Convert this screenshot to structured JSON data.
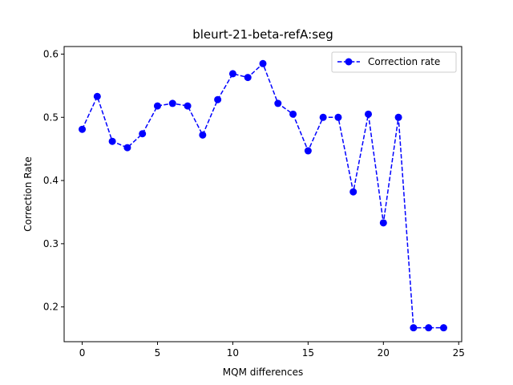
{
  "chart_data": {
    "type": "line",
    "title": "bleurt-21-beta-refA:seg",
    "xlabel": "MQM differences",
    "ylabel": "Correction Rate",
    "xlim": [
      -1.2,
      25.2
    ],
    "ylim": [
      0.145,
      0.612
    ],
    "xticks": [
      0,
      5,
      10,
      15,
      20,
      25
    ],
    "yticks": [
      0.2,
      0.3,
      0.4,
      0.5,
      0.6
    ],
    "legend_position": "top-right",
    "series": [
      {
        "name": "Correction rate",
        "color": "#0000ff",
        "style": "dashed",
        "marker": "circle",
        "x": [
          0,
          1,
          2,
          3,
          4,
          5,
          6,
          7,
          8,
          9,
          10,
          11,
          12,
          13,
          14,
          15,
          16,
          17,
          18,
          19,
          20,
          21,
          22,
          23,
          24
        ],
        "y": [
          0.481,
          0.533,
          0.462,
          0.452,
          0.474,
          0.518,
          0.522,
          0.518,
          0.472,
          0.528,
          0.569,
          0.563,
          0.585,
          0.522,
          0.505,
          0.447,
          0.5,
          0.5,
          0.382,
          0.505,
          0.333,
          0.5,
          0.167,
          0.167,
          0.167
        ]
      }
    ]
  }
}
